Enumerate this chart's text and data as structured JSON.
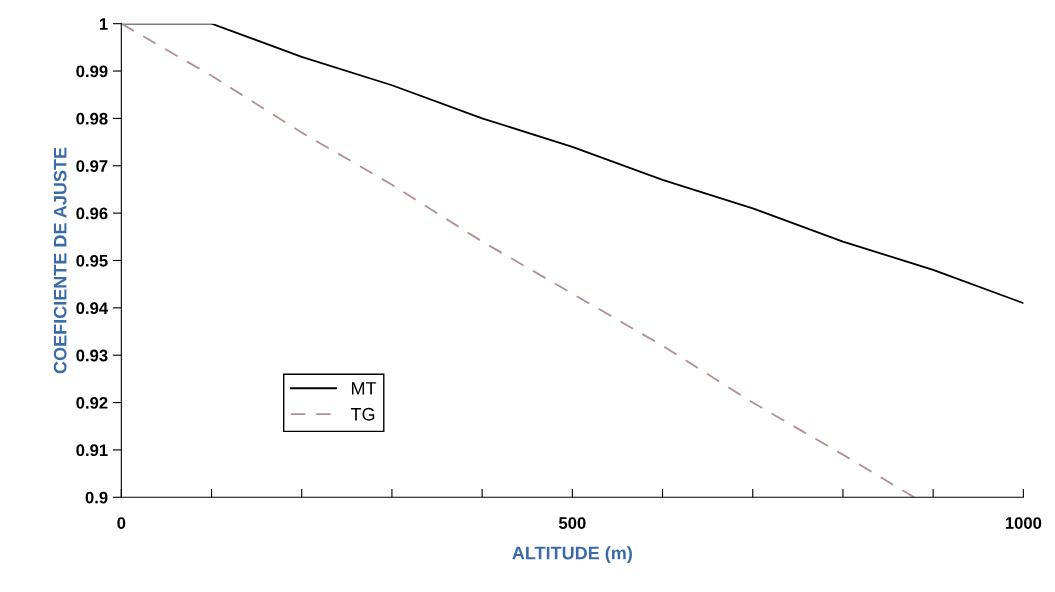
{
  "chart_data": {
    "type": "line",
    "xlabel": "ALTITUDE (m)",
    "ylabel": "COEFICIENTE DE AJUSTE",
    "xlim": [
      0,
      1000
    ],
    "ylim": [
      0.9,
      1
    ],
    "xticks": [
      0,
      {
        "value": 100,
        "label": null
      },
      {
        "value": 200,
        "label": null
      },
      {
        "value": 300,
        "label": null
      },
      {
        "value": 400,
        "label": null
      },
      500,
      {
        "value": 600,
        "label": null
      },
      {
        "value": 700,
        "label": null
      },
      {
        "value": 800,
        "label": null
      },
      {
        "value": 900,
        "label": null
      },
      1000
    ],
    "yticks": [
      0.9,
      0.91,
      0.92,
      0.93,
      0.94,
      0.95,
      0.96,
      0.97,
      0.98,
      0.99,
      1
    ],
    "grid": false,
    "legend": "bottom left",
    "marker": "none",
    "series": [
      {
        "name": "MT",
        "color": "#000000",
        "line_style": "solid",
        "x": [
          0,
          100,
          200,
          300,
          400,
          500,
          600,
          700,
          800,
          900,
          1000
        ],
        "values": [
          1,
          1,
          0.993,
          0.987,
          0.98,
          0.974,
          0.967,
          0.961,
          0.954,
          0.948,
          0.941
        ]
      },
      {
        "name": "TG",
        "color": "#b09090",
        "line_style": "dashed",
        "x": [
          0,
          100,
          200,
          300,
          400,
          500,
          600,
          700,
          800,
          879
        ],
        "values": [
          1,
          0.989,
          0.977,
          0.966,
          0.954,
          0.943,
          0.932,
          0.92,
          0.909,
          0.9
        ]
      }
    ]
  }
}
